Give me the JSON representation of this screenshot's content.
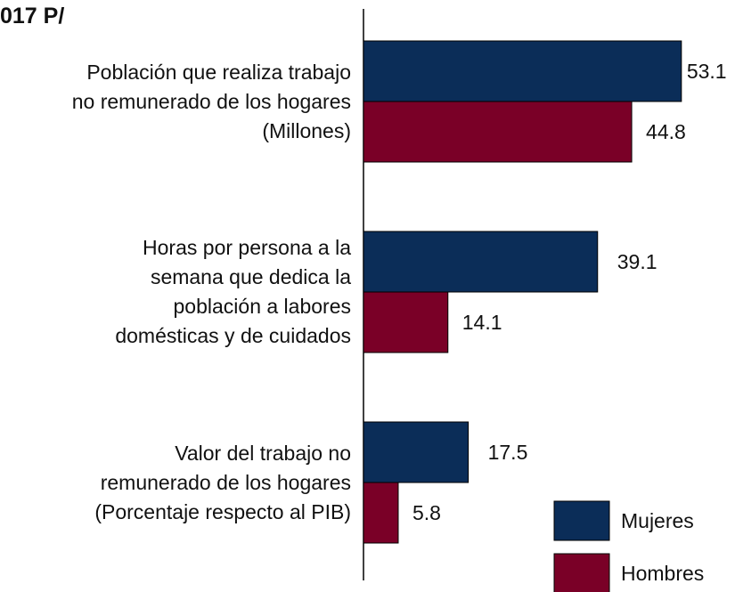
{
  "chart_data": {
    "type": "bar",
    "orientation": "horizontal",
    "title": "017 P/",
    "categories": [
      "Población que realiza  trabajo\nno remunerado de los hogares\n(Millones)",
      "Horas por persona a la\nsemana que dedica la\npoblación a labores\ndomésticas y de cuidados",
      "Valor del trabajo no\nremunerado de los hogares\n(Porcentaje respecto al PIB)"
    ],
    "series": [
      {
        "name": "Mujeres",
        "color": "#0b2d58",
        "values": [
          53.1,
          39.1,
          17.5
        ]
      },
      {
        "name": "Hombres",
        "color": "#7a0027",
        "values": [
          44.8,
          14.1,
          5.8
        ]
      }
    ],
    "legend": "lower right"
  }
}
